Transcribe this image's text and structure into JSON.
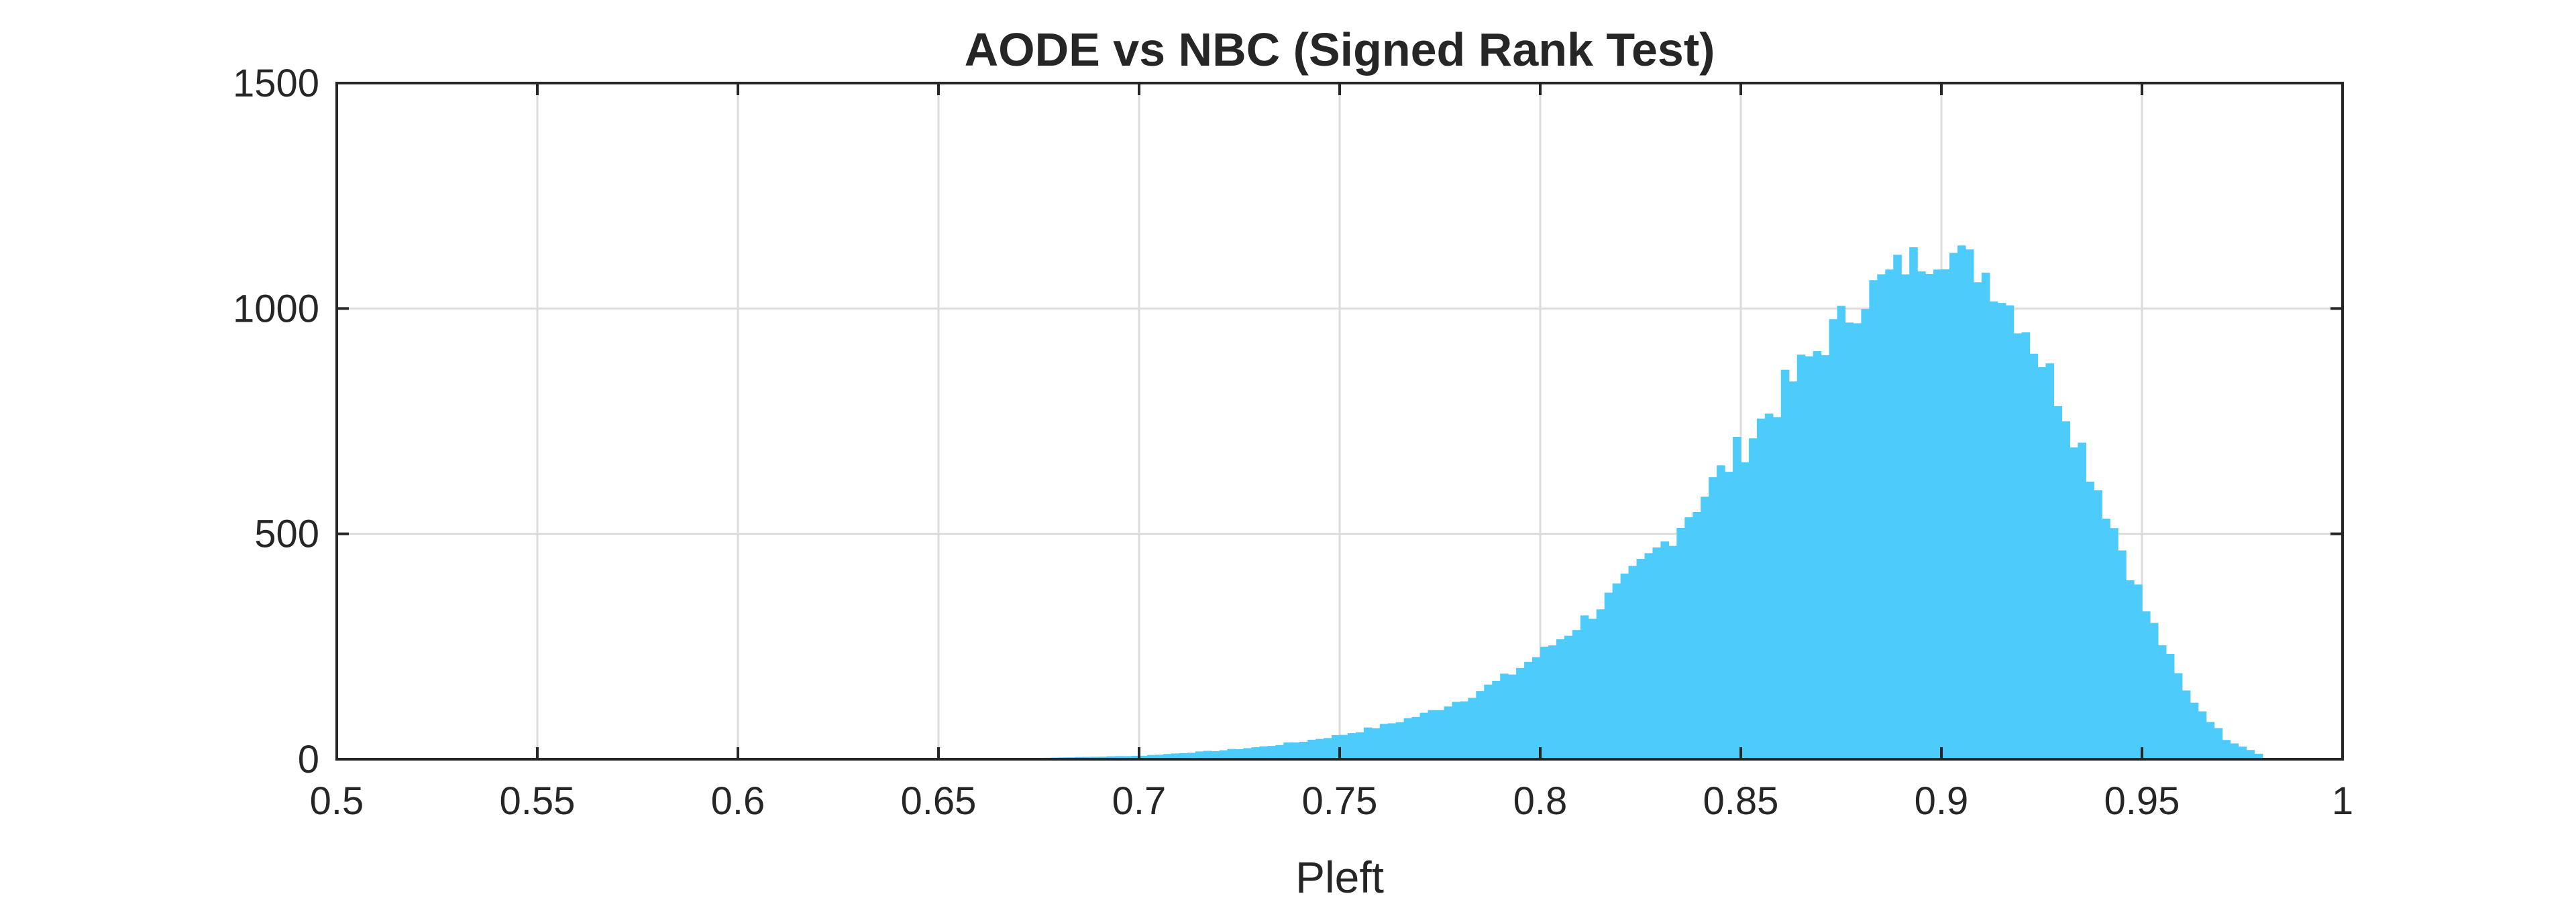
{
  "chart_data": {
    "type": "histogram",
    "title": "AODE vs NBC (Signed Rank Test)",
    "xlabel": "Pleft",
    "ylabel": "",
    "xlim": [
      0.5,
      1.0
    ],
    "ylim": [
      0,
      1500
    ],
    "xticks": [
      0.5,
      0.55,
      0.6,
      0.65,
      0.7,
      0.75,
      0.8,
      0.85,
      0.9,
      0.95,
      1.0
    ],
    "xtick_labels": [
      "0.5",
      "0.55",
      "0.6",
      "0.65",
      "0.7",
      "0.75",
      "0.8",
      "0.85",
      "0.9",
      "0.95",
      "1"
    ],
    "yticks": [
      0,
      500,
      1000,
      1500
    ],
    "ytick_labels": [
      "0",
      "500",
      "1000",
      "1500"
    ],
    "grid": true,
    "bar_color": "#4DCBFA",
    "bin_width": 0.002,
    "bins": [
      {
        "x": 0.67,
        "count": 2
      },
      {
        "x": 0.68,
        "count": 4
      },
      {
        "x": 0.69,
        "count": 6
      },
      {
        "x": 0.7,
        "count": 8
      },
      {
        "x": 0.71,
        "count": 14
      },
      {
        "x": 0.72,
        "count": 20
      },
      {
        "x": 0.73,
        "count": 28
      },
      {
        "x": 0.74,
        "count": 40
      },
      {
        "x": 0.75,
        "count": 55
      },
      {
        "x": 0.76,
        "count": 75
      },
      {
        "x": 0.77,
        "count": 100
      },
      {
        "x": 0.78,
        "count": 135
      },
      {
        "x": 0.79,
        "count": 180
      },
      {
        "x": 0.8,
        "count": 240
      },
      {
        "x": 0.81,
        "count": 310
      },
      {
        "x": 0.82,
        "count": 390
      },
      {
        "x": 0.83,
        "count": 480
      },
      {
        "x": 0.84,
        "count": 590
      },
      {
        "x": 0.85,
        "count": 700
      },
      {
        "x": 0.86,
        "count": 820
      },
      {
        "x": 0.87,
        "count": 930
      },
      {
        "x": 0.88,
        "count": 1030
      },
      {
        "x": 0.89,
        "count": 1100
      },
      {
        "x": 0.9,
        "count": 1130
      },
      {
        "x": 0.91,
        "count": 1080
      },
      {
        "x": 0.92,
        "count": 960
      },
      {
        "x": 0.93,
        "count": 780
      },
      {
        "x": 0.94,
        "count": 560
      },
      {
        "x": 0.95,
        "count": 330
      },
      {
        "x": 0.96,
        "count": 150
      },
      {
        "x": 0.97,
        "count": 45
      },
      {
        "x": 0.98,
        "count": 5
      }
    ]
  }
}
